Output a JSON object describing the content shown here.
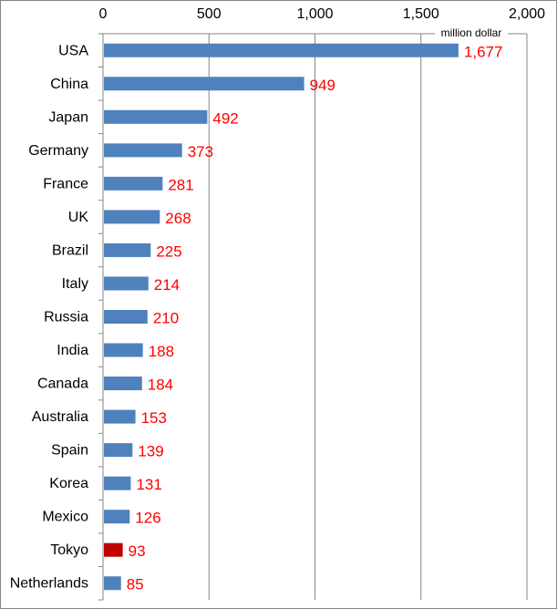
{
  "chart_data": {
    "type": "bar",
    "orientation": "horizontal",
    "title": "",
    "unit_label": "million dollar",
    "xlim": [
      0,
      2000
    ],
    "xticks": [
      0,
      500,
      1000,
      1500,
      2000
    ],
    "xtick_labels": [
      "0",
      "500",
      "1,000",
      "1,500",
      "2,000"
    ],
    "axis_position": "top",
    "grid": true,
    "categories": [
      "USA",
      "China",
      "Japan",
      "Germany",
      "France",
      "UK",
      "Brazil",
      "Italy",
      "Russia",
      "India",
      "Canada",
      "Australia",
      "Spain",
      "Korea",
      "Mexico",
      "Tokyo",
      "Netherlands"
    ],
    "values": [
      1677,
      949,
      492,
      373,
      281,
      268,
      225,
      214,
      210,
      188,
      184,
      153,
      139,
      131,
      126,
      93,
      85
    ],
    "value_labels": [
      "1,677",
      "949",
      "492",
      "373",
      "281",
      "268",
      "225",
      "214",
      "210",
      "188",
      "184",
      "153",
      "139",
      "131",
      "126",
      "93",
      "85"
    ],
    "highlight": "Tokyo",
    "colors": {
      "bar": "#4f81bd",
      "highlight": "#c00000",
      "label": "#ff0000",
      "grid": "#868686"
    }
  }
}
